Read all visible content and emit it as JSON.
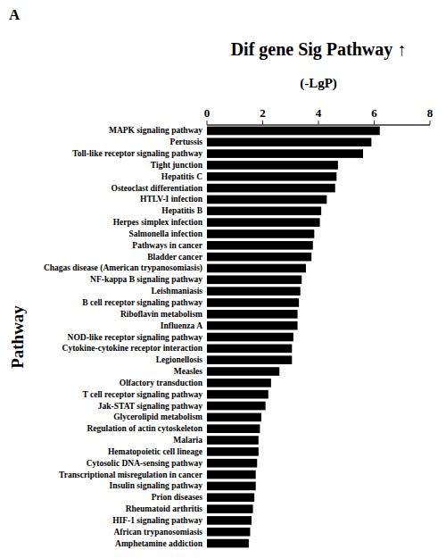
{
  "chart_data": {
    "type": "bar",
    "orientation": "horizontal",
    "title": "Dif gene Sig Pathway ↑",
    "subtitle": "(-LgP)",
    "ylabel": "Pathway",
    "annotations": [
      "A"
    ],
    "categories": [
      "MAPK signaling pathway",
      "Pertussis",
      "Toll-like receptor signaling pathway",
      "Tight junction",
      "Hepatitis C",
      "Osteoclast differentiation",
      "HTLV-I infection",
      "Hepatitis B",
      "Herpes simplex infection",
      "Salmonella infection",
      "Pathways in cancer",
      "Bladder cancer",
      "Chagas disease (American trypanosomiasis)",
      "NF-kappa B signaling pathway",
      "Leishmaniasis",
      "B cell receptor signaling pathway",
      "Riboflavin metabolism",
      "Influenza A",
      "NOD-like receptor signaling pathway",
      "Cytokine-cytokine receptor interaction",
      "Legionellosis",
      "Measles",
      "Olfactory transduction",
      "T cell receptor signaling pathway",
      "Jak-STAT signaling pathway",
      "Glycerolipid metabolism",
      "Regulation of actin cytoskeleton",
      "Malaria",
      "Hematopoietic cell lineage",
      "Cytosolic DNA-sensing pathway",
      "Transcriptional misregulation in cancer",
      "Insulin signaling pathway",
      "Prion diseases",
      "Rheumatoid arthritis",
      "HIF-1 signaling pathway",
      "African trypanosomiasis",
      "Amphetamine addiction"
    ],
    "values": [
      6.2,
      5.9,
      5.6,
      4.7,
      4.65,
      4.6,
      4.3,
      4.1,
      4.05,
      3.85,
      3.8,
      3.75,
      3.55,
      3.4,
      3.35,
      3.3,
      3.25,
      3.25,
      3.1,
      3.05,
      3.05,
      2.6,
      2.3,
      2.2,
      2.1,
      1.95,
      1.9,
      1.85,
      1.85,
      1.8,
      1.75,
      1.75,
      1.7,
      1.65,
      1.6,
      1.55,
      1.5
    ],
    "color": "#000000",
    "xlim": [
      0,
      8
    ],
    "xticks": [
      0,
      2,
      4,
      6,
      8
    ],
    "grid": false
  }
}
